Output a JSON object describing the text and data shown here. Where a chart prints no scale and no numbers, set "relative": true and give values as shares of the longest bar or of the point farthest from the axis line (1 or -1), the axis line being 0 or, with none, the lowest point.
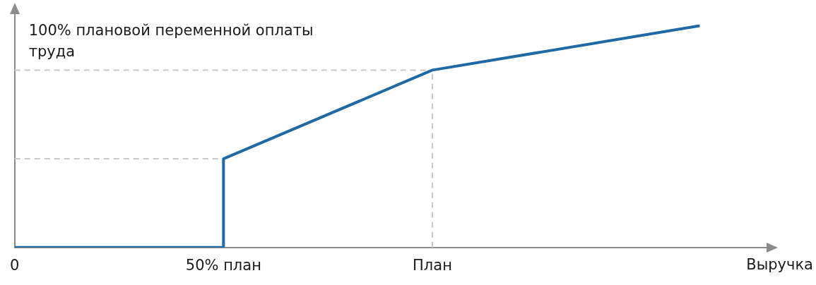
{
  "chart_data": {
    "type": "line",
    "relative": true,
    "xlabel": "Выручка",
    "ylabel": "100% плановой переменной оплаты труда",
    "x": [
      0,
      50,
      50,
      100,
      164
    ],
    "values": [
      0,
      0,
      0.4,
      0.8,
      1
    ],
    "color": "#1f6aa5",
    "marker": "none",
    "line_style": "solid",
    "grid": false,
    "xlim": [
      0,
      180
    ],
    "xticks": [
      {
        "value": 0,
        "label": "0"
      },
      {
        "value": 50,
        "label": "50% план"
      },
      {
        "value": 100,
        "label": "План"
      }
    ],
    "ref_lines": [
      {
        "axis": "y",
        "value": 0.8,
        "color": "#c8c8c8",
        "line_style": "dashed"
      },
      {
        "axis": "y",
        "value": 0.4,
        "color": "#c8c8c8",
        "line_style": "dashed"
      },
      {
        "axis": "x",
        "value": 100,
        "color": "#c8c8c8",
        "line_style": "dashed"
      }
    ]
  }
}
